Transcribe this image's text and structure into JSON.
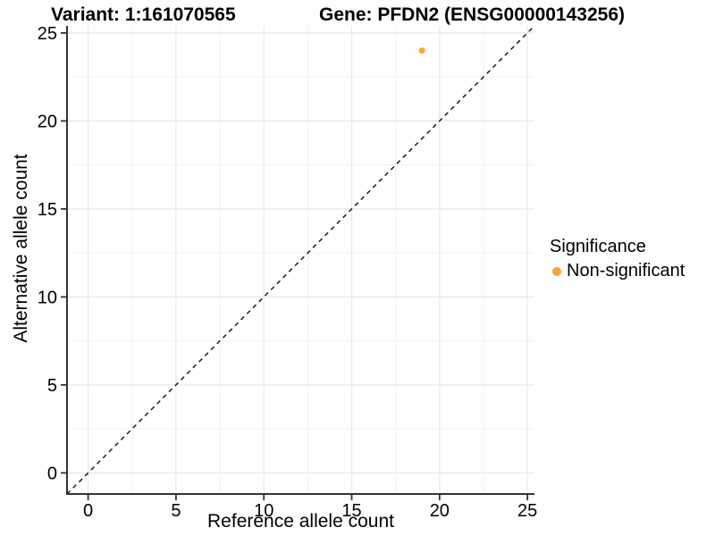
{
  "chart_data": {
    "type": "scatter",
    "title_parts": {
      "left": "Variant: 1:161070565",
      "right": "Gene: PFDN2 (ENSG00000143256)"
    },
    "xlabel": "Reference allele count",
    "ylabel": "Alternative allele count",
    "xlim": [
      -1.2,
      25.4
    ],
    "ylim": [
      -1.2,
      25.4
    ],
    "x_ticks": [
      0,
      5,
      10,
      15,
      20,
      25
    ],
    "y_ticks": [
      0,
      5,
      10,
      15,
      20,
      25
    ],
    "x_minor_gridlines": [
      2.5,
      7.5,
      12.5,
      17.5,
      22.5
    ],
    "y_minor_gridlines": [
      2.5,
      7.5,
      12.5,
      17.5,
      22.5
    ],
    "grid": "on",
    "series": [
      {
        "name": "Non-significant",
        "color": "#FCA52E",
        "points": [
          {
            "x": 19,
            "y": 24
          }
        ]
      }
    ],
    "reference_line": {
      "kind": "identity-diagonal",
      "style": "dashed",
      "color": "#1a1a1a"
    },
    "legend": {
      "position": "right",
      "title": "Significance",
      "entries": [
        {
          "label": "Non-significant",
          "color": "#FCA52E"
        }
      ]
    }
  }
}
